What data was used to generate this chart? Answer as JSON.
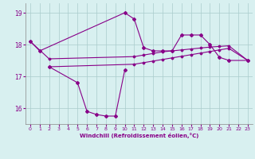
{
  "line1_x": [
    0,
    1,
    10,
    11,
    12,
    13,
    14,
    15,
    16,
    17,
    18,
    19,
    20,
    21,
    23
  ],
  "line1_y": [
    18.1,
    17.8,
    19.0,
    18.8,
    17.9,
    17.8,
    17.8,
    17.8,
    18.3,
    18.3,
    18.3,
    18.0,
    17.6,
    17.5,
    17.5
  ],
  "line2_x": [
    2,
    5,
    6,
    7,
    8,
    9,
    10
  ],
  "line2_y": [
    17.3,
    16.8,
    15.9,
    15.8,
    15.75,
    15.75,
    17.2
  ],
  "line3_x": [
    0,
    2,
    11,
    12,
    13,
    14,
    15,
    16,
    17,
    18,
    19,
    20,
    21,
    23
  ],
  "line3_y": [
    18.1,
    17.55,
    17.62,
    17.67,
    17.72,
    17.77,
    17.8,
    17.83,
    17.86,
    17.89,
    17.92,
    17.94,
    17.96,
    17.5
  ],
  "line4_x": [
    2,
    11,
    12,
    13,
    14,
    15,
    16,
    17,
    18,
    19,
    20,
    21,
    23
  ],
  "line4_y": [
    17.3,
    17.38,
    17.43,
    17.48,
    17.53,
    17.58,
    17.63,
    17.68,
    17.73,
    17.78,
    17.83,
    17.88,
    17.5
  ],
  "line_color": "#880088",
  "bg_color": "#d8f0f0",
  "grid_color": "#aacccc",
  "xlabel": "Windchill (Refroidissement éolien,°C)",
  "xlim": [
    -0.5,
    23.5
  ],
  "ylim": [
    15.5,
    19.3
  ],
  "yticks": [
    16,
    17,
    18,
    19
  ],
  "xticks": [
    0,
    1,
    2,
    3,
    4,
    5,
    6,
    7,
    8,
    9,
    10,
    11,
    12,
    13,
    14,
    15,
    16,
    17,
    18,
    19,
    20,
    21,
    22,
    23
  ]
}
